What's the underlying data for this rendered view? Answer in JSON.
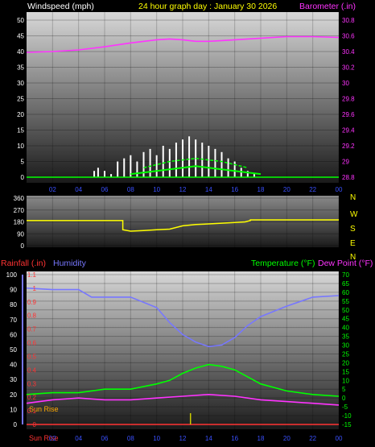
{
  "header": {
    "left": "Windspeed (mph)",
    "center": "24 hour graph day : January 30 2026",
    "right": "Barometer (.in)"
  },
  "lower_header": {
    "rainfall": "Rainfall (.in)",
    "humidity": "Humidity",
    "temperature": "Temperature (°F)",
    "dewpoint": "Dew Point (°F)"
  },
  "sunrise_label": "Sun Rise",
  "bottom_sunrise_label": "Sun Rise",
  "colors": {
    "wind": "#ffffff",
    "wind_avg": "#00ff00",
    "gust": "#ffff00",
    "barometer": "#ff33ff",
    "direction": "#ffff00",
    "rain": "#ff3333",
    "humidity": "#7777ff",
    "temperature": "#00ff00",
    "dewpoint": "#ff33ff",
    "tick_text": "#3a50ff",
    "header_yellow": "#ffff00"
  },
  "chart_data": [
    {
      "type": "line",
      "name": "wind-barometer",
      "x_ticks": [
        "02",
        "04",
        "06",
        "08",
        "10",
        "12",
        "14",
        "16",
        "18",
        "20",
        "22",
        "00"
      ],
      "x_range_hours": [
        0,
        24
      ],
      "wind_y_ticks": [
        "0",
        "5",
        "10",
        "15",
        "20",
        "25",
        "30",
        "35",
        "40",
        "45",
        "50"
      ],
      "wind_ylim": [
        0,
        50
      ],
      "baro_y_ticks": [
        "28.8",
        "29",
        "29.2",
        "29.4",
        "29.6",
        "29.8",
        "30",
        "30.2",
        "30.4",
        "30.6",
        "30.8"
      ],
      "baro_ylim": [
        28.8,
        30.8
      ],
      "barometer": {
        "x": [
          0,
          2,
          4,
          6,
          8,
          10,
          11,
          12,
          13,
          14,
          15,
          16,
          18,
          20,
          22,
          24
        ],
        "y": [
          30.39,
          30.4,
          30.42,
          30.46,
          30.51,
          30.55,
          30.56,
          30.55,
          30.53,
          30.53,
          30.54,
          30.55,
          30.57,
          30.59,
          30.59,
          30.58
        ]
      },
      "wind_speed": {
        "x": [
          5.2,
          5.5,
          6.0,
          6.5,
          7.0,
          7.5,
          8.0,
          8.5,
          9.0,
          9.5,
          10.0,
          10.5,
          11.0,
          11.5,
          12.0,
          12.5,
          13.0,
          13.5,
          14.0,
          14.5,
          15.0,
          15.5,
          16.0,
          16.5,
          17.0,
          17.5,
          18.0
        ],
        "y": [
          2,
          3,
          2,
          1,
          5,
          6,
          7,
          5,
          8,
          9,
          7,
          10,
          9,
          11,
          12,
          13,
          12,
          11,
          10,
          9,
          8,
          6,
          5,
          3,
          2,
          1,
          0
        ]
      },
      "wind_avg": {
        "x": [
          8,
          9,
          10,
          11,
          12,
          13,
          14,
          15,
          16,
          17,
          18
        ],
        "y": [
          1,
          1.5,
          2,
          2.5,
          3,
          3.5,
          3,
          2.5,
          2,
          1.5,
          1
        ]
      },
      "gust_avg": {
        "x": [
          9,
          10,
          11,
          12,
          13,
          14,
          15,
          16,
          17
        ],
        "y": [
          3,
          4,
          5,
          5.5,
          6,
          5.5,
          5,
          4,
          3
        ]
      }
    },
    {
      "type": "line",
      "name": "wind-direction",
      "y_ticks": [
        "0",
        "90",
        "180",
        "270",
        "360"
      ],
      "ylim": [
        0,
        360
      ],
      "compass": [
        "N",
        "W",
        "S",
        "E",
        "N"
      ],
      "direction": {
        "x": [
          0,
          7.4,
          7.4,
          8,
          9,
          10,
          11,
          12,
          13,
          14,
          15,
          16,
          16.8,
          17.2,
          17.2,
          24
        ],
        "y": [
          190,
          190,
          120,
          110,
          115,
          120,
          125,
          150,
          160,
          165,
          170,
          175,
          180,
          190,
          195,
          195
        ]
      }
    },
    {
      "type": "line",
      "name": "temp-humidity-rain",
      "rain_y_ticks": [
        "0",
        "0.1",
        "0.2",
        "0.3",
        "0.4",
        "0.5",
        "0.6",
        "0.7",
        "0.8",
        "0.9",
        "1",
        "1.1"
      ],
      "rain_ylim": [
        0,
        1.1
      ],
      "hum_y_ticks": [
        "0",
        "10",
        "20",
        "30",
        "40",
        "50",
        "60",
        "70",
        "80",
        "90",
        "100"
      ],
      "hum_ylim": [
        0,
        100
      ],
      "temp_y_ticks": [
        "-15",
        "-10",
        "-5",
        "0",
        "5",
        "10",
        "15",
        "20",
        "25",
        "30",
        "35",
        "40",
        "45",
        "50",
        "55",
        "60",
        "65",
        "70"
      ],
      "temp_ylim": [
        -15,
        70
      ],
      "x_ticks": [
        "02",
        "04",
        "06",
        "08",
        "10",
        "12",
        "14",
        "16",
        "18",
        "20",
        "22",
        "00"
      ],
      "humidity": {
        "x": [
          0,
          2,
          4,
          5,
          6,
          8,
          10,
          11,
          12,
          13,
          14,
          15,
          16,
          17,
          18,
          20,
          22,
          24
        ],
        "y": [
          91,
          90,
          90,
          85,
          85,
          85,
          78,
          68,
          60,
          55,
          52,
          53,
          58,
          66,
          72,
          79,
          85,
          86
        ]
      },
      "temperature": {
        "x": [
          0,
          2,
          4,
          6,
          8,
          10,
          11,
          12,
          13,
          14,
          15,
          16,
          17,
          18,
          20,
          22,
          24
        ],
        "y": [
          2,
          3,
          3,
          5,
          5,
          8,
          10,
          14,
          17,
          19,
          18,
          16,
          12,
          8,
          4,
          2,
          1
        ]
      },
      "dewpoint": {
        "x": [
          0,
          2,
          4,
          6,
          8,
          10,
          12,
          14,
          16,
          18,
          20,
          22,
          24
        ],
        "y": [
          -3,
          -1,
          0,
          -1,
          -1,
          0,
          1,
          2,
          1,
          -1,
          -2,
          -3,
          -4
        ]
      },
      "rainfall": {
        "x": [
          0,
          24
        ],
        "y": [
          0,
          0
        ]
      }
    }
  ]
}
